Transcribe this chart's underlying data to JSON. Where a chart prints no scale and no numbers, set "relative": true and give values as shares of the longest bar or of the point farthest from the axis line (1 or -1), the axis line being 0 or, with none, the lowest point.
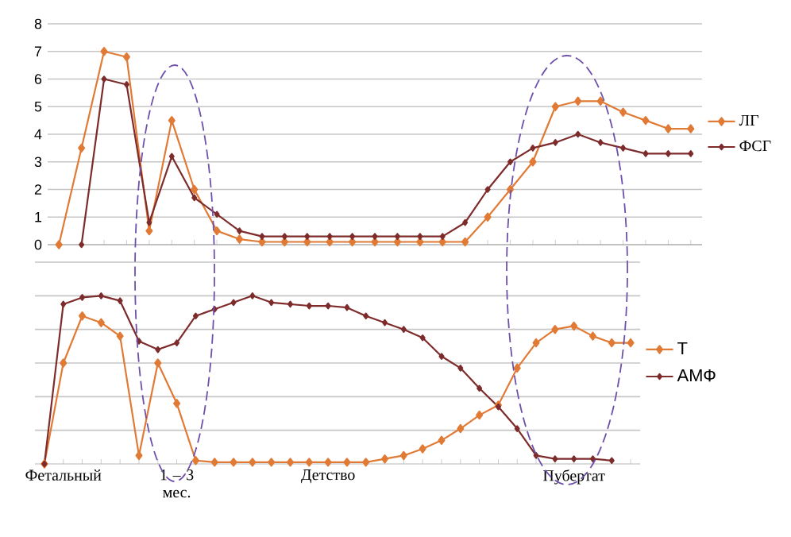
{
  "chart_data": [
    {
      "type": "line",
      "categories": [
        null,
        null,
        null,
        null,
        null,
        null,
        null,
        null,
        null,
        null,
        null,
        null,
        null,
        null,
        null,
        null,
        null,
        null,
        null,
        null,
        null,
        null,
        null,
        null,
        null,
        null,
        null,
        null,
        null
      ],
      "series": [
        {
          "name": "ЛГ",
          "color": "#e07a35",
          "values": [
            0,
            3.5,
            7,
            6.8,
            0.5,
            4.5,
            2,
            0.5,
            0.2,
            0.1,
            0.1,
            0.1,
            0.1,
            0.1,
            0.1,
            0.1,
            0.1,
            0.1,
            0.1,
            1,
            2,
            3,
            5,
            5.2,
            5.2,
            4.8,
            4.5,
            4.2,
            4.2
          ]
        },
        {
          "name": "ФСГ",
          "color": "#7d2b2b",
          "values": [
            null,
            0,
            6,
            5.8,
            0.8,
            3.2,
            1.7,
            1.1,
            0.5,
            0.3,
            0.3,
            0.3,
            0.3,
            0.3,
            0.3,
            0.3,
            0.3,
            0.3,
            0.8,
            2,
            3,
            3.5,
            3.7,
            4,
            3.7,
            3.5,
            3.3,
            3.3,
            3.3
          ]
        }
      ],
      "ylim": [
        0,
        8
      ],
      "yticks": [
        0,
        1,
        2,
        3,
        4,
        5,
        6,
        7,
        8
      ],
      "grid": "y",
      "legend": "right",
      "marker": "diamond",
      "tick_labels": "y"
    },
    {
      "type": "line",
      "relative": true,
      "categories": [
        null,
        "Фетальный",
        null,
        null,
        null,
        null,
        null,
        "1 – 3 мес.",
        null,
        null,
        null,
        null,
        null,
        null,
        null,
        "Детство",
        null,
        null,
        null,
        null,
        null,
        null,
        null,
        null,
        null,
        null,
        null,
        null,
        "Пубертат",
        null,
        null,
        null
      ],
      "series": [
        {
          "name": "T",
          "color": "#e07a35",
          "values": [
            0,
            0.6,
            0.88,
            0.84,
            0.76,
            0.05,
            0.6,
            0.36,
            0.02,
            0.01,
            0.01,
            0.01,
            0.01,
            0.01,
            0.01,
            0.01,
            0.01,
            0.01,
            0.03,
            0.05,
            0.09,
            0.14,
            0.21,
            0.29,
            0.35,
            0.57,
            0.72,
            0.8,
            0.82,
            0.76,
            0.72,
            0.72
          ]
        },
        {
          "name": "АМФ",
          "color": "#7d2b2b",
          "values": [
            0,
            0.95,
            0.99,
            1,
            0.97,
            0.73,
            0.68,
            0.72,
            0.88,
            0.92,
            0.96,
            1,
            0.96,
            0.95,
            0.94,
            0.94,
            0.93,
            0.88,
            0.84,
            0.8,
            0.75,
            0.64,
            0.57,
            0.45,
            0.34,
            0.21,
            0.05,
            0.03,
            0.03,
            0.03,
            0.02,
            null
          ]
        }
      ],
      "grid": "y",
      "legend": "right",
      "marker": "diamond",
      "tick_labels": "x"
    }
  ]
}
